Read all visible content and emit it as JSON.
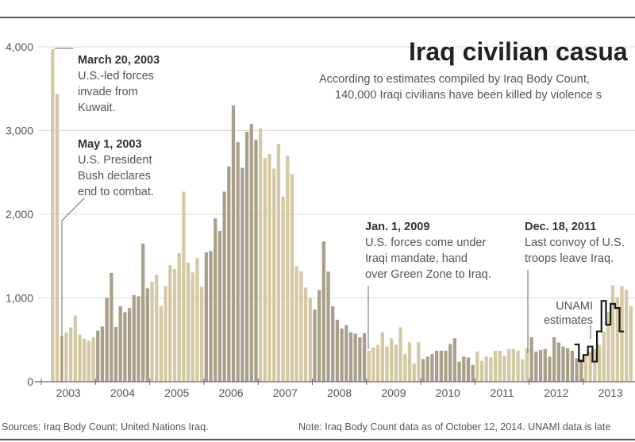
{
  "chart_data": {
    "type": "bar",
    "title": "Iraq civilian casua",
    "subtitle": [
      "According to estimates compiled by Iraq Body Count,",
      "140,000 Iraqi civilians have been killed by violence s"
    ],
    "xlabel": "",
    "ylabel": "",
    "ylim": [
      0,
      4000
    ],
    "y_ticks": [
      "0",
      "1,000",
      "2,000",
      "3,000",
      "4,000"
    ],
    "y_tick_values": [
      0,
      1000,
      2000,
      3000,
      4000
    ],
    "x_ticks": [
      "2003",
      "2004",
      "2005",
      "2006",
      "2007",
      "2008",
      "2009",
      "2010",
      "2011",
      "2012",
      "2013"
    ],
    "grid": true,
    "start_month": "2003-03",
    "series": [
      {
        "values": [
          3975,
          3440,
          545,
          590,
          650,
          790,
          565,
          515,
          490,
          530,
          610,
          660,
          1005,
          1300,
          655,
          900,
          830,
          880,
          1035,
          1020,
          1650,
          1115,
          1195,
          1280,
          900,
          1145,
          1390,
          1345,
          1535,
          2270,
          1425,
          1305,
          1475,
          1135,
          1545,
          1560,
          1950,
          1800,
          2270,
          2570,
          3300,
          2860,
          2555,
          2985,
          3080,
          2890,
          3025,
          2670,
          2720,
          2545,
          2840,
          2210,
          2700,
          2480,
          1380,
          1320,
          1125,
          1000,
          860,
          1095,
          1675,
          1315,
          900,
          740,
          635,
          675,
          590,
          575,
          530,
          580,
          370,
          410,
          440,
          590,
          420,
          520,
          440,
          650,
          330,
          470,
          215,
          470,
          270,
          300,
          330,
          370,
          370,
          370,
          450,
          520,
          240,
          300,
          290,
          200,
          360,
          250,
          300,
          290,
          370,
          370,
          310,
          390,
          390,
          370,
          270,
          400,
          530,
          360,
          380,
          390,
          300,
          530,
          470,
          420,
          400,
          370,
          280,
          270,
          320,
          360,
          390,
          440,
          600,
          830,
          1150,
          1010,
          1140,
          1100,
          900
        ]
      },
      {
        "name": "UNAMI estimates",
        "start_month": "2012-11",
        "values": [
          445,
          245,
          320,
          420,
          240,
          600,
          965,
          680,
          930,
          880,
          600
        ]
      }
    ],
    "colors": {
      "light_bar": "#d4c9a4",
      "dark_bar": "#a8a08a",
      "unami_line": "#1a1a1a",
      "grid": "#dcdcdc"
    },
    "annotations": [
      {
        "date": "March 20, 2003",
        "lines": [
          "U.S.-led forces",
          "invade from",
          "Kuwait."
        ]
      },
      {
        "date": "May 1, 2003",
        "lines": [
          "U.S. President",
          "Bush declares",
          "end to combat."
        ]
      },
      {
        "date": "Jan. 1, 2009",
        "lines": [
          "U.S. forces come under",
          "Iraqi mandate, hand",
          "over Green Zone to Iraq."
        ]
      },
      {
        "date": "Dec. 18, 2011",
        "lines": [
          "Last convoy of U.S.",
          "troops leave Iraq."
        ]
      }
    ],
    "unami_label": [
      "UNAMI",
      "estimates"
    ]
  },
  "footer": {
    "sources": "Sources: Iraq Body Count; United Nations Iraq.",
    "note": "Note: Iraq Body Count data as of October 12, 2014. UNAMI data is late"
  }
}
